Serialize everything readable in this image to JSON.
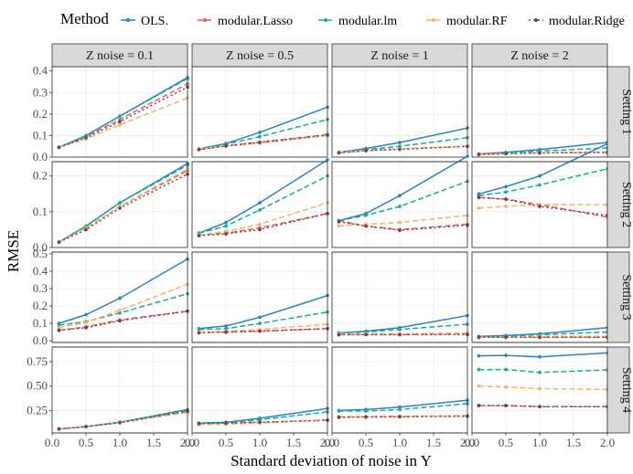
{
  "chart_data": {
    "type": "line",
    "legend": {
      "title": "Method",
      "placement": "top",
      "entries": [
        {
          "name": "OLS.",
          "color": "#2b83c4",
          "dash": "solid"
        },
        {
          "name": "modular.Lasso",
          "color": "#e0605f",
          "dash": "dash"
        },
        {
          "name": "modular.lm",
          "color": "#1aab90",
          "dash": "dash"
        },
        {
          "name": "modular.RF",
          "color": "#f5b26b",
          "dash": "dash"
        },
        {
          "name": "modular.Ridge",
          "color": "#7c3b55",
          "dash": "dot"
        }
      ]
    },
    "xlabel": "Standard deviation of noise in Y",
    "ylabel": "RMSE",
    "x": [
      0.1,
      0.5,
      1.0,
      2.0
    ],
    "xlim": [
      0.0,
      2.0
    ],
    "xticks": [
      "0.0",
      "0.5",
      "1.0",
      "1.5",
      "2.0"
    ],
    "col_labels": [
      "Z noise = 0.1",
      "Z noise = 0.5",
      "Z noise = 1",
      "Z noise = 2"
    ],
    "row_labels": [
      "Setting 1",
      "Setting 2",
      "Setting 3",
      "Setting 4"
    ],
    "rows": [
      {
        "ylim": [
          0.0,
          0.42
        ],
        "yticks": [
          "0.0",
          "0.1",
          "0.2",
          "0.3",
          "0.4"
        ],
        "panels": [
          {
            "series": [
              [
                0.045,
                0.1,
                0.19,
                0.37
              ],
              [
                0.045,
                0.095,
                0.175,
                0.34
              ],
              [
                0.045,
                0.1,
                0.19,
                0.365
              ],
              [
                0.045,
                0.085,
                0.15,
                0.275
              ],
              [
                0.045,
                0.09,
                0.165,
                0.325
              ]
            ]
          },
          {
            "series": [
              [
                0.038,
                0.063,
                0.115,
                0.232
              ],
              [
                0.035,
                0.052,
                0.07,
                0.105
              ],
              [
                0.037,
                0.06,
                0.095,
                0.175
              ],
              [
                0.04,
                0.05,
                0.065,
                0.1
              ],
              [
                0.035,
                0.052,
                0.068,
                0.102
              ]
            ]
          },
          {
            "series": [
              [
                0.022,
                0.04,
                0.068,
                0.135
              ],
              [
                0.02,
                0.03,
                0.038,
                0.05
              ],
              [
                0.022,
                0.035,
                0.05,
                0.09
              ],
              [
                0.024,
                0.03,
                0.038,
                0.05
              ],
              [
                0.02,
                0.03,
                0.036,
                0.05
              ]
            ]
          },
          {
            "series": [
              [
                0.015,
                0.022,
                0.035,
                0.068
              ],
              [
                0.012,
                0.016,
                0.02,
                0.022
              ],
              [
                0.013,
                0.02,
                0.028,
                0.042
              ],
              [
                0.014,
                0.016,
                0.02,
                0.024
              ],
              [
                0.012,
                0.016,
                0.019,
                0.022
              ]
            ]
          }
        ]
      },
      {
        "ylim": [
          0.0,
          0.24
        ],
        "yticks": [
          "0.0",
          "0.1",
          "0.2"
        ],
        "panels": [
          {
            "series": [
              [
                0.015,
                0.06,
                0.125,
                0.235
              ],
              [
                0.015,
                0.055,
                0.115,
                0.215
              ],
              [
                0.015,
                0.06,
                0.125,
                0.23
              ],
              [
                0.015,
                0.055,
                0.115,
                0.22
              ],
              [
                0.015,
                0.05,
                0.11,
                0.205
              ]
            ]
          },
          {
            "series": [
              [
                0.04,
                0.07,
                0.125,
                0.245
              ],
              [
                0.035,
                0.04,
                0.055,
                0.095
              ],
              [
                0.04,
                0.06,
                0.105,
                0.2
              ],
              [
                0.035,
                0.045,
                0.065,
                0.125
              ],
              [
                0.033,
                0.038,
                0.05,
                0.095
              ]
            ]
          },
          {
            "series": [
              [
                0.075,
                0.095,
                0.145,
                0.255
              ],
              [
                0.075,
                0.06,
                0.05,
                0.065
              ],
              [
                0.075,
                0.09,
                0.115,
                0.185
              ],
              [
                0.06,
                0.065,
                0.07,
                0.09
              ],
              [
                0.072,
                0.06,
                0.048,
                0.062
              ]
            ]
          },
          {
            "series": [
              [
                0.15,
                0.17,
                0.2,
                0.29
              ],
              [
                0.14,
                0.135,
                0.12,
                0.085
              ],
              [
                0.145,
                0.155,
                0.175,
                0.22
              ],
              [
                0.11,
                0.115,
                0.12,
                0.12
              ],
              [
                0.14,
                0.135,
                0.115,
                0.09
              ]
            ]
          }
        ]
      },
      {
        "ylim": [
          -0.01,
          0.51
        ],
        "yticks": [
          "0.0",
          "0.1",
          "0.2",
          "0.3",
          "0.4",
          "0.5"
        ],
        "panels": [
          {
            "series": [
              [
                0.1,
                0.15,
                0.245,
                0.47
              ],
              [
                0.06,
                0.08,
                0.12,
                0.17
              ],
              [
                0.09,
                0.11,
                0.16,
                0.27
              ],
              [
                0.075,
                0.105,
                0.175,
                0.325
              ],
              [
                0.06,
                0.075,
                0.115,
                0.17
              ]
            ]
          },
          {
            "series": [
              [
                0.07,
                0.085,
                0.135,
                0.26
              ],
              [
                0.05,
                0.05,
                0.055,
                0.07
              ],
              [
                0.065,
                0.07,
                0.1,
                0.165
              ],
              [
                0.05,
                0.055,
                0.065,
                0.095
              ],
              [
                0.045,
                0.05,
                0.055,
                0.07
              ]
            ]
          },
          {
            "series": [
              [
                0.045,
                0.055,
                0.075,
                0.145
              ],
              [
                0.035,
                0.035,
                0.035,
                0.04
              ],
              [
                0.045,
                0.05,
                0.065,
                0.095
              ],
              [
                0.04,
                0.04,
                0.04,
                0.045
              ],
              [
                0.035,
                0.035,
                0.035,
                0.035
              ]
            ]
          },
          {
            "series": [
              [
                0.025,
                0.03,
                0.04,
                0.075
              ],
              [
                0.02,
                0.02,
                0.02,
                0.02
              ],
              [
                0.025,
                0.025,
                0.035,
                0.05
              ],
              [
                0.02,
                0.02,
                0.025,
                0.025
              ],
              [
                0.02,
                0.02,
                0.02,
                0.02
              ]
            ]
          }
        ]
      },
      {
        "ylim": [
          0.02,
          0.9
        ],
        "yticks": [
          "0.25",
          "0.50",
          "0.75"
        ],
        "panels": [
          {
            "series": [
              [
                0.06,
                0.085,
                0.13,
                0.26
              ],
              [
                0.06,
                0.085,
                0.125,
                0.235
              ],
              [
                0.06,
                0.085,
                0.13,
                0.25
              ],
              [
                0.06,
                0.085,
                0.125,
                0.23
              ],
              [
                0.06,
                0.085,
                0.125,
                0.245
              ]
            ]
          },
          {
            "series": [
              [
                0.12,
                0.13,
                0.17,
                0.27
              ],
              [
                0.115,
                0.12,
                0.13,
                0.15
              ],
              [
                0.12,
                0.125,
                0.155,
                0.235
              ],
              [
                0.105,
                0.11,
                0.12,
                0.155
              ],
              [
                0.115,
                0.12,
                0.13,
                0.15
              ]
            ]
          },
          {
            "series": [
              [
                0.25,
                0.26,
                0.285,
                0.355
              ],
              [
                0.185,
                0.185,
                0.19,
                0.195
              ],
              [
                0.245,
                0.245,
                0.26,
                0.32
              ],
              [
                0.18,
                0.18,
                0.185,
                0.2
              ],
              [
                0.18,
                0.185,
                0.185,
                0.19
              ]
            ]
          },
          {
            "series": [
              [
                0.81,
                0.815,
                0.8,
                0.84
              ],
              [
                0.3,
                0.3,
                0.29,
                0.29
              ],
              [
                0.67,
                0.67,
                0.64,
                0.665
              ],
              [
                0.5,
                0.49,
                0.475,
                0.465
              ],
              [
                0.3,
                0.3,
                0.29,
                0.29
              ]
            ]
          }
        ]
      }
    ]
  }
}
